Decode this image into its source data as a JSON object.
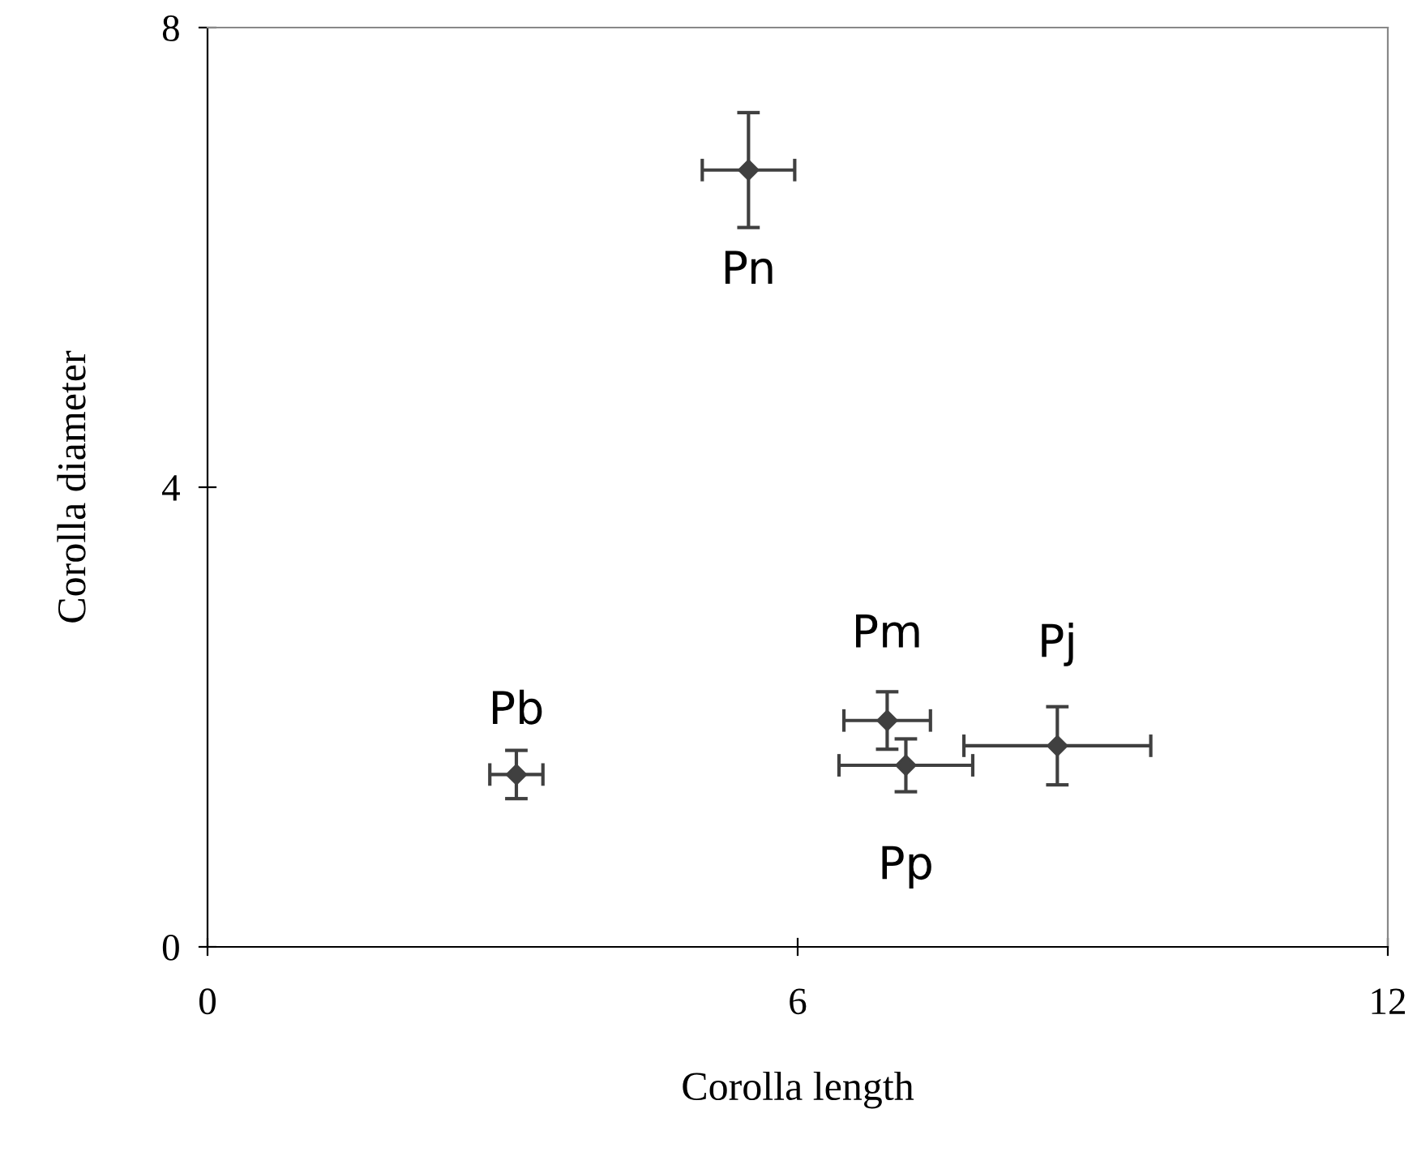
{
  "chart_data": {
    "type": "scatter",
    "xlabel": "Corolla length",
    "ylabel": "Corolla diameter",
    "x": [
      5.5,
      3.14,
      6.91,
      7.1,
      8.64
    ],
    "values": [
      6.76,
      1.5,
      1.97,
      1.58,
      1.75
    ],
    "errors": [
      0.5,
      0.21,
      0.25,
      0.23,
      0.34
    ],
    "xerrors": [
      0.47,
      0.27,
      0.44,
      0.68,
      0.95
    ],
    "color": "#404040",
    "marker": "diamond",
    "xlim": [
      0,
      12
    ],
    "xticks": [
      0,
      6,
      12
    ],
    "ylim": [
      0,
      8
    ],
    "yticks": [
      0,
      4,
      8
    ],
    "grid": false,
    "annotations": [
      {
        "text": "Pn",
        "x": 5.5,
        "y": 6.76
      },
      {
        "text": "Pb",
        "x": 3.14,
        "y": 1.5
      },
      {
        "text": "Pm",
        "x": 6.91,
        "y": 1.97
      },
      {
        "text": "Pp",
        "x": 7.1,
        "y": 1.58
      },
      {
        "text": "Pj",
        "x": 8.64,
        "y": 1.75
      }
    ]
  }
}
